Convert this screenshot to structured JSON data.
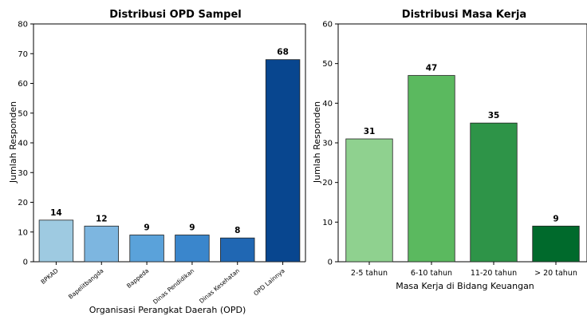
{
  "chart_data": [
    {
      "type": "bar",
      "title": "Distribusi OPD Sampel",
      "xlabel": "Organisasi Perangkat Daerah (OPD)",
      "ylabel": "Jumlah Responden",
      "categories": [
        "BPKAD",
        "Bapelitbangda",
        "Bappeda",
        "Dinas Pendidikan",
        "Dinas Kesehatan",
        "OPD Lainnya"
      ],
      "values": [
        14,
        12,
        9,
        9,
        8,
        68
      ],
      "ylim": [
        0,
        80
      ],
      "yticks": [
        0,
        10,
        20,
        30,
        40,
        50,
        60,
        70,
        80
      ],
      "colors": [
        "#9ecae1",
        "#7db6e0",
        "#5aa2da",
        "#3a86cc",
        "#2067b3",
        "#08468f"
      ],
      "grid": false,
      "rotated_category_labels": true
    },
    {
      "type": "bar",
      "title": "Distribusi Masa Kerja",
      "xlabel": "Masa Kerja di Bidang Keuangan",
      "ylabel": "Jumlah Responden",
      "categories": [
        "2-5 tahun",
        "6-10 tahun",
        "11-20 tahun",
        "> 20 tahun"
      ],
      "values": [
        31,
        47,
        35,
        9
      ],
      "ylim": [
        0,
        60
      ],
      "yticks": [
        0,
        10,
        20,
        30,
        40,
        50,
        60
      ],
      "colors": [
        "#8fd18f",
        "#5bb95f",
        "#2e9448",
        "#006a2c"
      ],
      "grid": false,
      "rotated_category_labels": false
    }
  ]
}
